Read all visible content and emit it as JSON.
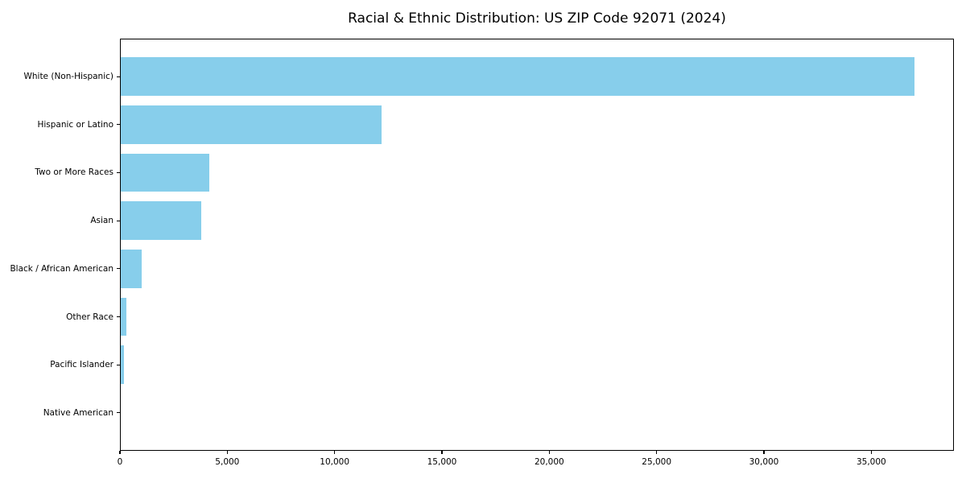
{
  "chart_data": {
    "type": "bar",
    "orientation": "horizontal",
    "title": "Racial & Ethnic Distribution: US ZIP Code 92071 (2024)",
    "categories": [
      "White (Non-Hispanic)",
      "Hispanic or Latino",
      "Two or More Races",
      "Asian",
      "Black / African American",
      "Other Race",
      "Pacific Islander",
      "Native American"
    ],
    "values": [
      37000,
      12200,
      4180,
      3800,
      1020,
      300,
      170,
      30
    ],
    "bar_color": "#87CEEB",
    "text_color": "#000000",
    "background_color": "#ffffff",
    "xlabel": "",
    "ylabel": "",
    "xlim": [
      0,
      38850
    ],
    "xticks": [
      0,
      5000,
      10000,
      15000,
      20000,
      25000,
      30000,
      35000
    ],
    "xtick_labels": [
      "0",
      "5,000",
      "10,000",
      "15,000",
      "20,000",
      "25,000",
      "30,000",
      "35,000"
    ],
    "grid": false,
    "legend": "none",
    "frame": "full-box"
  }
}
